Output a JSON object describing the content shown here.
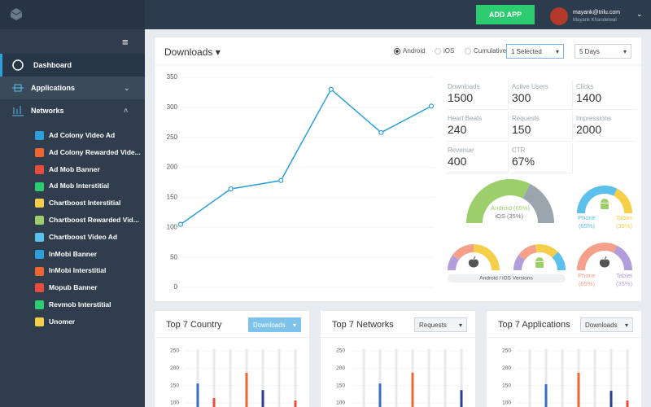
{
  "topbar": {
    "button": "ADD APP",
    "user_email": "mayank@trilu.com",
    "user_name": "Mayank Khandelwal"
  },
  "sidebar": {
    "menu": [
      "Dashboard",
      "Applications",
      "Networks"
    ],
    "networks": [
      "Ad Colony Video Ad",
      "Ad Colony Rewarded Vide...",
      "Ad Mob Banner",
      "Ad Mob Interstitial",
      "Chartboost Interstitial",
      "Chartboost Rewarded Vid...",
      "Chartboost Video Ad",
      "InMobi Banner",
      "InMobi Interstitial",
      "Mopub Banner",
      "Revmob Interstitial",
      "Unomer"
    ]
  },
  "downloads_panel": {
    "title": "Downloads",
    "platforms": [
      "Android",
      "iOS",
      "Cumulative"
    ],
    "selected_platform": "Android",
    "apps_select": "1 Selected",
    "range_select": "5 Days",
    "chart": {
      "type": "line",
      "color": "#2e9fd8",
      "ylim": [
        0,
        350
      ],
      "yticks": [
        0,
        50,
        100,
        150,
        200,
        250,
        300,
        350
      ],
      "grid": true,
      "values": [
        105,
        164,
        178,
        330,
        258,
        302
      ]
    },
    "stats": [
      {
        "label": "Downloads",
        "value": 1500
      },
      {
        "label": "Active Users",
        "value": 300
      },
      {
        "label": "Clicks",
        "value": 1400
      },
      {
        "label": "Heart Beats",
        "value": 240
      },
      {
        "label": "Requests",
        "value": 150
      },
      {
        "label": "Impressions",
        "value": 2000
      },
      {
        "label": "Revenue",
        "value": 400
      },
      {
        "label": "CTR",
        "value": "67%"
      }
    ],
    "platform_gauge": [
      {
        "name": "Android",
        "value": 65,
        "value_label": "(65%)",
        "color": "#9ccf6b"
      },
      {
        "name": "iOS",
        "value": 35,
        "value_label": "(35%)",
        "color": "#9aa5ad"
      }
    ],
    "device_gauge": [
      {
        "name": "Phone",
        "value": 65,
        "value_label": "(65%)",
        "color": "#5bc0eb"
      },
      {
        "name": "Tablet",
        "value": 35,
        "value_label": "(35%)",
        "color": "#f5cf4a"
      }
    ],
    "ios_device_gauge": [
      {
        "name": "Phone",
        "value": 65,
        "value_label": "(65%)",
        "color": "#f4a08a"
      },
      {
        "name": "Tablet",
        "value": 35,
        "value_label": "(35%)",
        "color": "#b39ddb"
      }
    ],
    "ios_versions": [
      {
        "value": 20,
        "color": "#b39ddb"
      },
      {
        "value": 30,
        "color": "#f4a08a"
      },
      {
        "value": 50,
        "color": "#f5cf4a"
      }
    ],
    "android_versions": [
      {
        "value": 20,
        "color": "#b39ddb"
      },
      {
        "value": 25,
        "color": "#f4a08a"
      },
      {
        "value": 30,
        "color": "#f5cf4a"
      },
      {
        "value": 25,
        "color": "#5bc0eb"
      }
    ],
    "versions_label": "Android / iOS Versions"
  },
  "cards": [
    {
      "title": "Top 7 Country",
      "select": "Downloads",
      "chart": {
        "type": "bar",
        "ylim": [
          100,
          250
        ],
        "yticks": [
          250,
          200,
          150,
          100
        ],
        "values": [
          156,
          114,
          null,
          187,
          137,
          null,
          107
        ],
        "colors": [
          "#3a6fc4",
          "#e74c3c",
          "#cccccc",
          "#f0642f",
          "#2c3e8c",
          "#cccccc",
          "#e74c3c"
        ]
      }
    },
    {
      "title": "Top 7 Networks",
      "select": "Requests",
      "chart": {
        "type": "bar",
        "ylim": [
          100,
          250
        ],
        "yticks": [
          250,
          200,
          150,
          100
        ],
        "values": [
          null,
          156,
          null,
          187,
          null,
          null,
          137
        ],
        "colors": [
          "#cccccc",
          "#3a6fc4",
          "#cccccc",
          "#f0642f",
          "#cccccc",
          "#cccccc",
          "#2c3e8c"
        ]
      }
    },
    {
      "title": "Top 7 Applications",
      "select": "Downloads",
      "chart": {
        "type": "bar",
        "ylim": [
          100,
          250
        ],
        "yticks": [
          250,
          200,
          150,
          100
        ],
        "values": [
          null,
          154,
          null,
          187,
          null,
          135,
          107
        ],
        "colors": [
          "#cccccc",
          "#3a6fc4",
          "#cccccc",
          "#f0642f",
          "#cccccc",
          "#2c3e8c",
          "#e74c3c"
        ]
      }
    }
  ]
}
